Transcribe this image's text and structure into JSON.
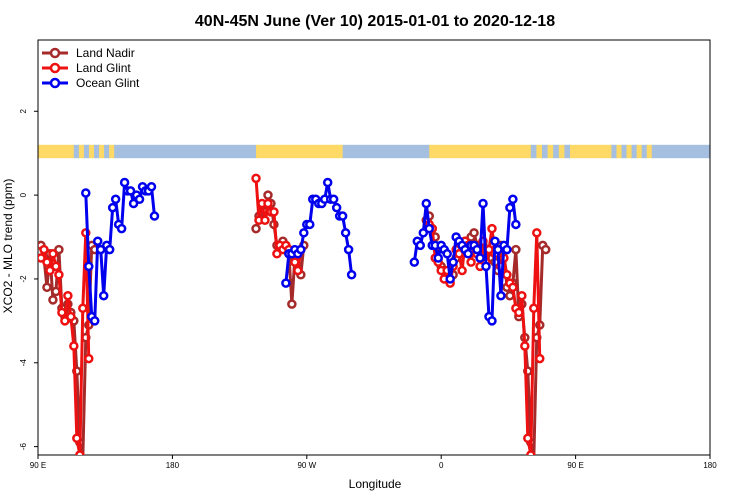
{
  "chart_data": {
    "type": "line",
    "title": "40N-45N June (Ver 10)   2015-01-01 to 2020-12-18",
    "xlabel": "Longitude",
    "ylabel": "XCO2 - MLO trend (ppm)",
    "xlim": [
      90,
      450
    ],
    "ylim": [
      -6.2,
      3.7
    ],
    "x_ticks": [
      {
        "value": 90,
        "label": "90 E"
      },
      {
        "value": 180,
        "label": "180"
      },
      {
        "value": 270,
        "label": "90 W"
      },
      {
        "value": 360,
        "label": "0"
      },
      {
        "value": 450,
        "label": "90 E"
      },
      {
        "value": 540,
        "label": "180"
      }
    ],
    "y_ticks": [
      {
        "value": 2,
        "label": "2"
      },
      {
        "value": 0,
        "label": "0"
      },
      {
        "value": -2,
        "label": "-2"
      },
      {
        "value": -4,
        "label": "-4"
      },
      {
        "value": -6,
        "label": "-6"
      }
    ],
    "legend_position": "top-left",
    "grid": false,
    "land_ocean_strip": {
      "land_color": "#ffd966",
      "ocean_color": "#a4bfe0",
      "segments": [
        {
          "from": 90,
          "to": 114,
          "kind": "land"
        },
        {
          "from": 114,
          "to": 141,
          "kind": "mixed"
        },
        {
          "from": 141,
          "to": 236,
          "kind": "ocean"
        },
        {
          "from": 236,
          "to": 294,
          "kind": "land"
        },
        {
          "from": 294,
          "to": 352,
          "kind": "ocean"
        },
        {
          "from": 352,
          "to": 420,
          "kind": "land"
        },
        {
          "from": 420,
          "to": 450,
          "kind": "mixed"
        },
        {
          "from": 450,
          "to": 474,
          "kind": "land"
        },
        {
          "from": 474,
          "to": 501,
          "kind": "mixed"
        },
        {
          "from": 501,
          "to": 540,
          "kind": "ocean"
        }
      ]
    },
    "series": [
      {
        "name": "Land Nadir",
        "color": "#a52a2a",
        "points": [
          [
            92,
            -1.2
          ],
          [
            94,
            -1.5
          ],
          [
            96,
            -2.2
          ],
          [
            98,
            -1.4
          ],
          [
            100,
            -2.5
          ],
          [
            102,
            -2.3
          ],
          [
            104,
            -1.3
          ],
          [
            106,
            -2.7
          ],
          [
            108,
            -2.9
          ],
          [
            110,
            -2.6
          ],
          [
            112,
            -2.8
          ],
          [
            114,
            -3.0
          ],
          [
            116,
            -4.2
          ],
          [
            118,
            -5.9
          ],
          [
            120,
            -6.3
          ],
          [
            122,
            -3.4
          ],
          [
            124,
            -3.1
          ],
          [
            126,
            -1.2
          ],
          [
            128,
            -1.3
          ],
          [
            236,
            -0.8
          ],
          [
            238,
            -0.5
          ],
          [
            240,
            -0.3
          ],
          [
            242,
            -0.4
          ],
          [
            244,
            0.0
          ],
          [
            246,
            -0.2
          ],
          [
            248,
            -0.7
          ],
          [
            250,
            -1.2
          ],
          [
            252,
            -1.3
          ],
          [
            254,
            -1.1
          ],
          [
            256,
            -1.2
          ],
          [
            258,
            -1.4
          ],
          [
            260,
            -2.6
          ],
          [
            262,
            -1.5
          ],
          [
            264,
            -1.7
          ],
          [
            266,
            -1.9
          ],
          [
            268,
            -1.2
          ],
          [
            350,
            -0.6
          ],
          [
            352,
            -0.5
          ],
          [
            354,
            -0.8
          ],
          [
            356,
            -1.0
          ],
          [
            358,
            -1.5
          ],
          [
            360,
            -1.7
          ],
          [
            362,
            -1.8
          ],
          [
            364,
            -1.9
          ],
          [
            366,
            -2.0
          ],
          [
            368,
            -1.9
          ],
          [
            370,
            -1.5
          ],
          [
            372,
            -1.3
          ],
          [
            374,
            -1.4
          ],
          [
            376,
            -1.1
          ],
          [
            378,
            -1.2
          ],
          [
            380,
            -1.0
          ],
          [
            382,
            -0.9
          ],
          [
            384,
            -1.2
          ],
          [
            386,
            -1.4
          ],
          [
            388,
            -1.2
          ],
          [
            390,
            -1.4
          ],
          [
            392,
            -1.3
          ],
          [
            394,
            -1.5
          ],
          [
            396,
            -1.6
          ],
          [
            398,
            -1.8
          ],
          [
            400,
            -1.2
          ],
          [
            402,
            -1.3
          ],
          [
            404,
            -2.2
          ],
          [
            406,
            -2.4
          ],
          [
            408,
            -2.1
          ],
          [
            410,
            -1.3
          ],
          [
            412,
            -2.9
          ],
          [
            414,
            -2.6
          ],
          [
            416,
            -3.4
          ],
          [
            418,
            -4.2
          ],
          [
            420,
            -5.9
          ],
          [
            422,
            -6.3
          ],
          [
            424,
            -3.4
          ],
          [
            426,
            -3.1
          ],
          [
            428,
            -1.2
          ],
          [
            430,
            -1.3
          ]
        ]
      },
      {
        "name": "Land Glint",
        "color": "#ee1111",
        "points": [
          [
            92,
            -1.5
          ],
          [
            94,
            -1.3
          ],
          [
            96,
            -1.6
          ],
          [
            98,
            -1.8
          ],
          [
            100,
            -1.4
          ],
          [
            102,
            -1.7
          ],
          [
            104,
            -1.9
          ],
          [
            106,
            -2.8
          ],
          [
            108,
            -3.0
          ],
          [
            110,
            -2.4
          ],
          [
            112,
            -2.9
          ],
          [
            114,
            -3.6
          ],
          [
            116,
            -5.8
          ],
          [
            118,
            -6.2
          ],
          [
            120,
            -2.7
          ],
          [
            122,
            -0.9
          ],
          [
            124,
            -3.9
          ],
          [
            236,
            0.4
          ],
          [
            238,
            -0.6
          ],
          [
            240,
            -0.2
          ],
          [
            242,
            -0.6
          ],
          [
            244,
            -0.2
          ],
          [
            246,
            -0.4
          ],
          [
            248,
            -0.4
          ],
          [
            250,
            -1.4
          ],
          [
            252,
            -1.2
          ],
          [
            254,
            -1.3
          ],
          [
            256,
            -1.2
          ],
          [
            258,
            -1.3
          ],
          [
            260,
            -1.4
          ],
          [
            262,
            -1.6
          ],
          [
            264,
            -1.8
          ],
          [
            266,
            -1.3
          ],
          [
            352,
            -0.7
          ],
          [
            354,
            -0.8
          ],
          [
            356,
            -1.5
          ],
          [
            358,
            -1.6
          ],
          [
            360,
            -1.8
          ],
          [
            362,
            -2.0
          ],
          [
            364,
            -1.8
          ],
          [
            366,
            -2.1
          ],
          [
            368,
            -1.7
          ],
          [
            370,
            -1.3
          ],
          [
            372,
            -1.4
          ],
          [
            374,
            -1.8
          ],
          [
            376,
            -1.1
          ],
          [
            378,
            -1.2
          ],
          [
            380,
            -1.6
          ],
          [
            382,
            -1.2
          ],
          [
            384,
            -1.4
          ],
          [
            386,
            -1.7
          ],
          [
            388,
            -1.1
          ],
          [
            390,
            -1.6
          ],
          [
            392,
            -1.3
          ],
          [
            394,
            -0.8
          ],
          [
            396,
            -1.4
          ],
          [
            398,
            -1.3
          ],
          [
            400,
            -1.7
          ],
          [
            402,
            -1.5
          ],
          [
            404,
            -1.9
          ],
          [
            406,
            -2.1
          ],
          [
            408,
            -2.2
          ],
          [
            410,
            -2.7
          ],
          [
            412,
            -2.8
          ],
          [
            414,
            -2.4
          ],
          [
            416,
            -3.6
          ],
          [
            418,
            -5.8
          ],
          [
            420,
            -6.2
          ],
          [
            422,
            -2.7
          ],
          [
            424,
            -0.9
          ],
          [
            426,
            -3.9
          ]
        ]
      },
      {
        "name": "Ocean Glint",
        "color": "#0000ee",
        "points": [
          [
            122,
            0.05
          ],
          [
            124,
            -1.7
          ],
          [
            126,
            -2.9
          ],
          [
            128,
            -3.0
          ],
          [
            130,
            -1.1
          ],
          [
            132,
            -1.3
          ],
          [
            134,
            -2.4
          ],
          [
            136,
            -1.2
          ],
          [
            138,
            -1.3
          ],
          [
            140,
            -0.3
          ],
          [
            142,
            -0.1
          ],
          [
            144,
            -0.7
          ],
          [
            146,
            -0.8
          ],
          [
            148,
            0.3
          ],
          [
            150,
            0.1
          ],
          [
            152,
            0.1
          ],
          [
            154,
            -0.2
          ],
          [
            156,
            0.0
          ],
          [
            158,
            -0.1
          ],
          [
            160,
            0.2
          ],
          [
            162,
            0.1
          ],
          [
            164,
            0.1
          ],
          [
            166,
            0.2
          ],
          [
            168,
            -0.5
          ],
          [
            256,
            -2.1
          ],
          [
            258,
            -1.4
          ],
          [
            260,
            -1.4
          ],
          [
            262,
            -1.3
          ],
          [
            264,
            -1.4
          ],
          [
            266,
            -1.3
          ],
          [
            268,
            -0.9
          ],
          [
            270,
            -0.7
          ],
          [
            272,
            -0.7
          ],
          [
            274,
            -0.1
          ],
          [
            276,
            -0.1
          ],
          [
            278,
            -0.2
          ],
          [
            280,
            -0.2
          ],
          [
            282,
            -0.1
          ],
          [
            284,
            0.3
          ],
          [
            286,
            -0.1
          ],
          [
            288,
            -0.1
          ],
          [
            290,
            -0.3
          ],
          [
            292,
            -0.5
          ],
          [
            294,
            -0.5
          ],
          [
            296,
            -0.9
          ],
          [
            298,
            -1.3
          ],
          [
            300,
            -1.9
          ],
          [
            342,
            -1.6
          ],
          [
            344,
            -1.1
          ],
          [
            346,
            -1.2
          ],
          [
            348,
            -0.9
          ],
          [
            350,
            -0.2
          ],
          [
            352,
            -0.8
          ],
          [
            354,
            -1.2
          ],
          [
            356,
            -1.2
          ],
          [
            358,
            -1.5
          ],
          [
            360,
            -1.2
          ],
          [
            362,
            -1.3
          ],
          [
            364,
            -1.4
          ],
          [
            366,
            -2.0
          ],
          [
            368,
            -1.6
          ],
          [
            370,
            -1.0
          ],
          [
            372,
            -1.1
          ],
          [
            374,
            -1.2
          ],
          [
            376,
            -1.3
          ],
          [
            378,
            -1.4
          ],
          [
            380,
            -1.2
          ],
          [
            382,
            -1.2
          ],
          [
            384,
            -1.3
          ],
          [
            386,
            -1.5
          ],
          [
            388,
            -0.2
          ],
          [
            390,
            -1.7
          ],
          [
            392,
            -2.9
          ],
          [
            394,
            -3.0
          ],
          [
            396,
            -1.1
          ],
          [
            398,
            -1.3
          ],
          [
            400,
            -2.4
          ],
          [
            402,
            -1.2
          ],
          [
            404,
            -1.3
          ],
          [
            406,
            -0.3
          ],
          [
            408,
            -0.1
          ],
          [
            410,
            -0.7
          ]
        ]
      }
    ]
  }
}
